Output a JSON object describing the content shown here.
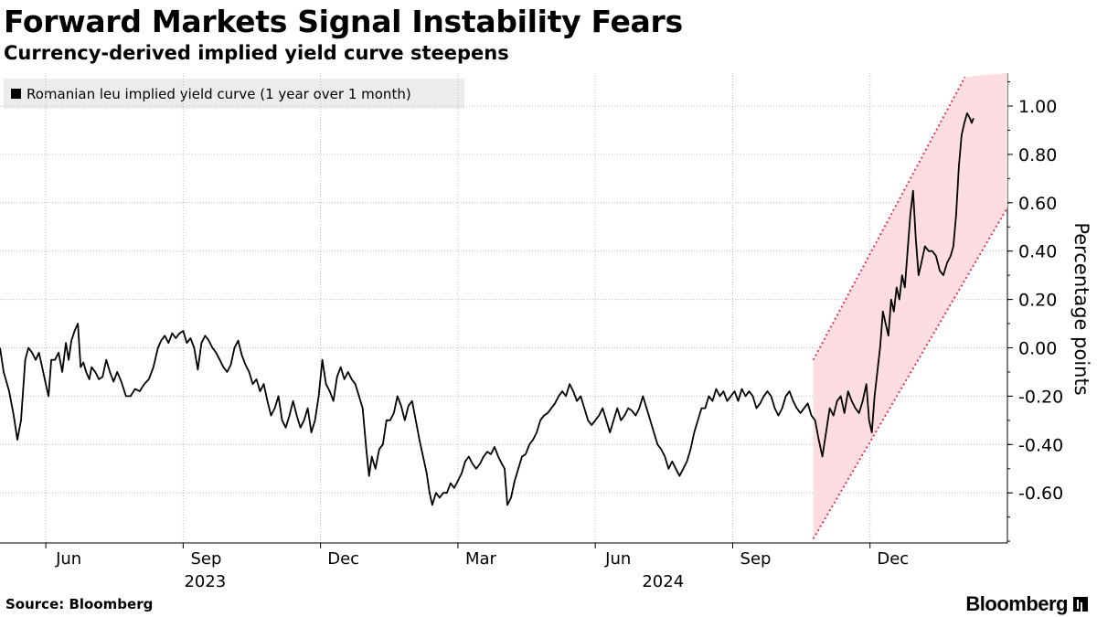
{
  "header": {
    "title": "Forward Markets Signal Instability Fears",
    "subtitle": "Currency-derived implied yield curve steepens"
  },
  "footer": {
    "source": "Source: Bloomberg",
    "brand": "Bloomberg"
  },
  "colors": {
    "line": "#000000",
    "band_fill": "#fddde2",
    "band_edge": "#e0385a",
    "grid": "#bcbcbc",
    "legend_bg": "#ececec"
  },
  "chart_data": {
    "type": "line",
    "title": "Forward Markets Signal Instability Fears",
    "subtitle": "Currency-derived implied yield curve steepens",
    "xlabel": "",
    "ylabel": "Percentage points",
    "ylim": [
      -0.8,
      1.1
    ],
    "yticks": [
      -0.6,
      -0.4,
      -0.2,
      0.0,
      0.2,
      0.4,
      0.6,
      0.8,
      1.0
    ],
    "ytick_labels": [
      "-0.60",
      "-0.40",
      "-0.20",
      "0.00",
      "0.20",
      "0.40",
      "0.60",
      "0.80",
      "1.00"
    ],
    "xlim": [
      0.0,
      22.0
    ],
    "x_ticks": [
      {
        "x": 1.5,
        "label": "Jun"
      },
      {
        "x": 4.5,
        "label": "Sep"
      },
      {
        "x": 7.5,
        "label": "Dec"
      },
      {
        "x": 10.5,
        "label": "Mar"
      },
      {
        "x": 13.5,
        "label": "Jun"
      },
      {
        "x": 16.5,
        "label": "Sep"
      },
      {
        "x": 19.5,
        "label": "Dec"
      }
    ],
    "x_year_labels": [
      {
        "x": 4.0,
        "label": "2023"
      },
      {
        "x": 14.0,
        "label": "2024"
      }
    ],
    "x_boundaries": [
      1.0,
      4.0,
      7.0,
      10.0,
      13.0,
      16.0,
      19.0
    ],
    "grid": true,
    "legend": {
      "position": "top-left",
      "entries": [
        "Romanian leu implied yield curve (1 year over 1 month)"
      ]
    },
    "band": {
      "lower": [
        [
          17.76,
          -0.79
        ],
        [
          22.0,
          0.58
        ]
      ],
      "upper": [
        [
          17.76,
          -0.05
        ],
        [
          21.07,
          1.12
        ]
      ]
    },
    "series": [
      {
        "name": "Romanian leu implied yield curve (1 year over 1 month)",
        "points": [
          [
            0.0,
            0.0
          ],
          [
            0.08,
            -0.1
          ],
          [
            0.2,
            -0.18
          ],
          [
            0.3,
            -0.28
          ],
          [
            0.38,
            -0.38
          ],
          [
            0.46,
            -0.3
          ],
          [
            0.55,
            -0.05
          ],
          [
            0.62,
            0.0
          ],
          [
            0.7,
            -0.02
          ],
          [
            0.78,
            -0.05
          ],
          [
            0.85,
            -0.02
          ],
          [
            0.92,
            -0.08
          ],
          [
            1.0,
            -0.15
          ],
          [
            1.06,
            -0.2
          ],
          [
            1.12,
            -0.05
          ],
          [
            1.2,
            -0.05
          ],
          [
            1.28,
            -0.02
          ],
          [
            1.36,
            -0.1
          ],
          [
            1.44,
            0.02
          ],
          [
            1.5,
            -0.05
          ],
          [
            1.56,
            0.03
          ],
          [
            1.63,
            0.07
          ],
          [
            1.7,
            0.1
          ],
          [
            1.76,
            -0.08
          ],
          [
            1.82,
            -0.06
          ],
          [
            1.88,
            -0.1
          ],
          [
            1.95,
            -0.13
          ],
          [
            2.0,
            -0.08
          ],
          [
            2.08,
            -0.1
          ],
          [
            2.16,
            -0.13
          ],
          [
            2.24,
            -0.12
          ],
          [
            2.32,
            -0.05
          ],
          [
            2.4,
            -0.1
          ],
          [
            2.48,
            -0.14
          ],
          [
            2.56,
            -0.1
          ],
          [
            2.65,
            -0.14
          ],
          [
            2.75,
            -0.2
          ],
          [
            2.85,
            -0.2
          ],
          [
            2.95,
            -0.17
          ],
          [
            3.05,
            -0.18
          ],
          [
            3.15,
            -0.15
          ],
          [
            3.25,
            -0.13
          ],
          [
            3.35,
            -0.08
          ],
          [
            3.45,
            0.0
          ],
          [
            3.52,
            0.03
          ],
          [
            3.6,
            0.05
          ],
          [
            3.68,
            0.02
          ],
          [
            3.76,
            0.06
          ],
          [
            3.84,
            0.04
          ],
          [
            3.92,
            0.06
          ],
          [
            4.0,
            0.07
          ],
          [
            4.08,
            0.02
          ],
          [
            4.16,
            0.04
          ],
          [
            4.24,
            0.0
          ],
          [
            4.32,
            -0.09
          ],
          [
            4.4,
            0.02
          ],
          [
            4.48,
            0.05
          ],
          [
            4.56,
            0.03
          ],
          [
            4.64,
            0.0
          ],
          [
            4.72,
            -0.02
          ],
          [
            4.8,
            -0.05
          ],
          [
            4.88,
            -0.08
          ],
          [
            4.96,
            -0.1
          ],
          [
            5.04,
            -0.07
          ],
          [
            5.12,
            0.0
          ],
          [
            5.2,
            0.03
          ],
          [
            5.28,
            -0.03
          ],
          [
            5.36,
            -0.07
          ],
          [
            5.44,
            -0.1
          ],
          [
            5.52,
            -0.15
          ],
          [
            5.6,
            -0.13
          ],
          [
            5.68,
            -0.18
          ],
          [
            5.76,
            -0.15
          ],
          [
            5.84,
            -0.22
          ],
          [
            5.92,
            -0.28
          ],
          [
            6.0,
            -0.25
          ],
          [
            6.08,
            -0.2
          ],
          [
            6.16,
            -0.3
          ],
          [
            6.24,
            -0.33
          ],
          [
            6.32,
            -0.28
          ],
          [
            6.4,
            -0.22
          ],
          [
            6.48,
            -0.28
          ],
          [
            6.56,
            -0.33
          ],
          [
            6.64,
            -0.3
          ],
          [
            6.72,
            -0.25
          ],
          [
            6.8,
            -0.35
          ],
          [
            6.88,
            -0.3
          ],
          [
            6.96,
            -0.2
          ],
          [
            7.04,
            -0.05
          ],
          [
            7.12,
            -0.15
          ],
          [
            7.2,
            -0.18
          ],
          [
            7.28,
            -0.22
          ],
          [
            7.36,
            -0.12
          ],
          [
            7.44,
            -0.08
          ],
          [
            7.52,
            -0.13
          ],
          [
            7.6,
            -0.1
          ],
          [
            7.68,
            -0.13
          ],
          [
            7.76,
            -0.15
          ],
          [
            7.84,
            -0.2
          ],
          [
            7.92,
            -0.25
          ],
          [
            8.0,
            -0.42
          ],
          [
            8.06,
            -0.53
          ],
          [
            8.12,
            -0.45
          ],
          [
            8.2,
            -0.5
          ],
          [
            8.28,
            -0.42
          ],
          [
            8.36,
            -0.4
          ],
          [
            8.44,
            -0.3
          ],
          [
            8.52,
            -0.3
          ],
          [
            8.6,
            -0.27
          ],
          [
            8.68,
            -0.2
          ],
          [
            8.76,
            -0.24
          ],
          [
            8.84,
            -0.3
          ],
          [
            8.92,
            -0.24
          ],
          [
            9.0,
            -0.22
          ],
          [
            9.08,
            -0.3
          ],
          [
            9.16,
            -0.38
          ],
          [
            9.24,
            -0.45
          ],
          [
            9.32,
            -0.52
          ],
          [
            9.38,
            -0.6
          ],
          [
            9.44,
            -0.65
          ],
          [
            9.52,
            -0.6
          ],
          [
            9.6,
            -0.62
          ],
          [
            9.68,
            -0.6
          ],
          [
            9.76,
            -0.6
          ],
          [
            9.84,
            -0.56
          ],
          [
            9.92,
            -0.58
          ],
          [
            10.0,
            -0.55
          ],
          [
            10.08,
            -0.52
          ],
          [
            10.16,
            -0.47
          ],
          [
            10.24,
            -0.45
          ],
          [
            10.32,
            -0.48
          ],
          [
            10.4,
            -0.5
          ],
          [
            10.48,
            -0.48
          ],
          [
            10.56,
            -0.45
          ],
          [
            10.64,
            -0.43
          ],
          [
            10.72,
            -0.44
          ],
          [
            10.8,
            -0.41
          ],
          [
            10.88,
            -0.45
          ],
          [
            10.96,
            -0.48
          ],
          [
            11.02,
            -0.5
          ],
          [
            11.08,
            -0.65
          ],
          [
            11.16,
            -0.62
          ],
          [
            11.24,
            -0.55
          ],
          [
            11.32,
            -0.5
          ],
          [
            11.4,
            -0.45
          ],
          [
            11.48,
            -0.44
          ],
          [
            11.56,
            -0.4
          ],
          [
            11.64,
            -0.38
          ],
          [
            11.72,
            -0.35
          ],
          [
            11.8,
            -0.3
          ],
          [
            11.88,
            -0.28
          ],
          [
            11.96,
            -0.27
          ],
          [
            12.04,
            -0.25
          ],
          [
            12.12,
            -0.23
          ],
          [
            12.2,
            -0.2
          ],
          [
            12.28,
            -0.18
          ],
          [
            12.36,
            -0.2
          ],
          [
            12.44,
            -0.15
          ],
          [
            12.52,
            -0.18
          ],
          [
            12.6,
            -0.22
          ],
          [
            12.68,
            -0.2
          ],
          [
            12.76,
            -0.25
          ],
          [
            12.84,
            -0.3
          ],
          [
            12.92,
            -0.32
          ],
          [
            13.0,
            -0.3
          ],
          [
            13.08,
            -0.28
          ],
          [
            13.16,
            -0.25
          ],
          [
            13.24,
            -0.3
          ],
          [
            13.32,
            -0.35
          ],
          [
            13.4,
            -0.3
          ],
          [
            13.48,
            -0.25
          ],
          [
            13.56,
            -0.3
          ],
          [
            13.64,
            -0.28
          ],
          [
            13.72,
            -0.25
          ],
          [
            13.8,
            -0.26
          ],
          [
            13.88,
            -0.28
          ],
          [
            13.96,
            -0.25
          ],
          [
            14.04,
            -0.2
          ],
          [
            14.12,
            -0.25
          ],
          [
            14.2,
            -0.3
          ],
          [
            14.28,
            -0.35
          ],
          [
            14.36,
            -0.4
          ],
          [
            14.44,
            -0.42
          ],
          [
            14.52,
            -0.45
          ],
          [
            14.6,
            -0.5
          ],
          [
            14.68,
            -0.47
          ],
          [
            14.76,
            -0.5
          ],
          [
            14.84,
            -0.53
          ],
          [
            14.92,
            -0.5
          ],
          [
            15.0,
            -0.47
          ],
          [
            15.08,
            -0.42
          ],
          [
            15.16,
            -0.35
          ],
          [
            15.24,
            -0.3
          ],
          [
            15.32,
            -0.25
          ],
          [
            15.4,
            -0.25
          ],
          [
            15.48,
            -0.2
          ],
          [
            15.56,
            -0.22
          ],
          [
            15.64,
            -0.17
          ],
          [
            15.72,
            -0.2
          ],
          [
            15.8,
            -0.18
          ],
          [
            15.88,
            -0.22
          ],
          [
            15.96,
            -0.2
          ],
          [
            16.04,
            -0.18
          ],
          [
            16.12,
            -0.22
          ],
          [
            16.2,
            -0.17
          ],
          [
            16.28,
            -0.2
          ],
          [
            16.36,
            -0.18
          ],
          [
            16.44,
            -0.2
          ],
          [
            16.52,
            -0.25
          ],
          [
            16.6,
            -0.23
          ],
          [
            16.68,
            -0.2
          ],
          [
            16.76,
            -0.18
          ],
          [
            16.84,
            -0.2
          ],
          [
            16.92,
            -0.25
          ],
          [
            17.0,
            -0.28
          ],
          [
            17.08,
            -0.25
          ],
          [
            17.16,
            -0.2
          ],
          [
            17.24,
            -0.18
          ],
          [
            17.32,
            -0.22
          ],
          [
            17.4,
            -0.25
          ],
          [
            17.48,
            -0.27
          ],
          [
            17.56,
            -0.25
          ],
          [
            17.64,
            -0.23
          ],
          [
            17.72,
            -0.28
          ],
          [
            17.8,
            -0.3
          ],
          [
            17.88,
            -0.38
          ],
          [
            17.96,
            -0.45
          ],
          [
            18.04,
            -0.35
          ],
          [
            18.12,
            -0.25
          ],
          [
            18.2,
            -0.28
          ],
          [
            18.28,
            -0.22
          ],
          [
            18.36,
            -0.2
          ],
          [
            18.44,
            -0.27
          ],
          [
            18.52,
            -0.18
          ],
          [
            18.6,
            -0.22
          ],
          [
            18.68,
            -0.25
          ],
          [
            18.76,
            -0.27
          ],
          [
            18.84,
            -0.22
          ],
          [
            18.92,
            -0.15
          ],
          [
            18.98,
            -0.3
          ],
          [
            19.04,
            -0.35
          ],
          [
            19.1,
            -0.2
          ],
          [
            19.16,
            -0.1
          ],
          [
            19.22,
            0.0
          ],
          [
            19.28,
            0.15
          ],
          [
            19.34,
            0.1
          ],
          [
            19.4,
            0.05
          ],
          [
            19.46,
            0.2
          ],
          [
            19.52,
            0.15
          ],
          [
            19.58,
            0.25
          ],
          [
            19.64,
            0.2
          ],
          [
            19.7,
            0.3
          ],
          [
            19.76,
            0.25
          ],
          [
            19.82,
            0.4
          ],
          [
            19.88,
            0.55
          ],
          [
            19.94,
            0.65
          ],
          [
            20.0,
            0.45
          ],
          [
            20.06,
            0.3
          ],
          [
            20.12,
            0.35
          ],
          [
            20.2,
            0.42
          ],
          [
            20.28,
            0.4
          ],
          [
            20.36,
            0.4
          ],
          [
            20.44,
            0.38
          ],
          [
            20.52,
            0.32
          ],
          [
            20.6,
            0.3
          ],
          [
            20.68,
            0.35
          ],
          [
            20.76,
            0.38
          ],
          [
            20.82,
            0.42
          ],
          [
            20.88,
            0.55
          ],
          [
            20.94,
            0.75
          ],
          [
            21.0,
            0.88
          ],
          [
            21.06,
            0.93
          ],
          [
            21.12,
            0.97
          ],
          [
            21.18,
            0.95
          ],
          [
            21.22,
            0.93
          ],
          [
            21.26,
            0.95
          ]
        ]
      }
    ]
  }
}
